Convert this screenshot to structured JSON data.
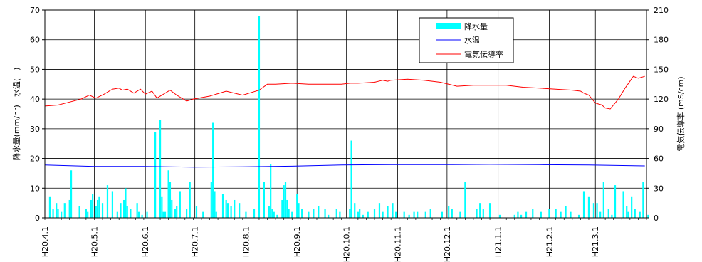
{
  "chart_data": {
    "type": "bar+line",
    "title": "",
    "x_tick_labels": [
      "H20.4.1",
      "H20.5.1",
      "H20.6.1",
      "H20.7.1",
      "H20.8.1",
      "H20.9.1",
      "H20.10.1",
      "H20.11.1",
      "H20.12.1",
      "H21.1.1",
      "H21.2.1",
      "H21.3.1"
    ],
    "y_left": {
      "label": "降水量(mm/hr)　水温(　)",
      "ylim": [
        0,
        70
      ],
      "ticks": [
        0,
        10,
        20,
        30,
        40,
        50,
        60,
        70
      ]
    },
    "y_right": {
      "label": "電気伝導率 (mS/cm)",
      "ylim": [
        0,
        210
      ],
      "ticks": [
        0,
        30,
        60,
        90,
        120,
        150,
        180,
        210
      ]
    },
    "grid": true,
    "legend": {
      "placement": "top-right",
      "entries": [
        "降水量",
        "水温",
        "電気伝導率"
      ]
    },
    "series": [
      {
        "name": "降水量",
        "type": "bar",
        "axis": "left",
        "color": "#00ffff",
        "x": [
          3,
          5,
          7,
          8,
          10,
          12,
          15,
          16,
          21,
          25,
          26,
          28,
          29,
          31,
          32,
          33,
          35,
          38,
          41,
          44,
          46,
          48,
          49,
          50,
          52,
          56,
          57,
          59,
          62,
          67,
          70,
          71,
          72,
          73,
          75,
          76,
          77,
          79,
          80,
          82,
          86,
          88,
          92,
          96,
          101,
          102,
          103,
          104,
          108,
          110,
          111,
          113,
          115,
          118,
          122,
          127,
          130,
          133,
          136,
          137,
          138,
          139,
          141,
          144,
          145,
          146,
          147,
          148,
          150,
          153,
          154,
          156,
          160,
          163,
          166,
          170,
          172,
          177,
          179,
          185,
          186,
          188,
          190,
          191,
          193,
          196,
          200,
          203,
          205,
          208,
          211,
          213,
          218,
          221,
          224,
          226,
          231,
          234,
          241,
          245,
          247,
          252,
          255,
          262,
          264,
          266,
          270,
          276,
          285,
          287,
          289,
          292,
          296,
          301,
          306,
          310,
          313,
          316,
          319,
          324,
          327,
          330,
          333,
          335,
          337,
          339,
          342,
          344,
          346,
          351,
          353,
          354,
          356,
          358,
          361,
          363,
          366
        ],
        "values": [
          7,
          3,
          5,
          3,
          2,
          5,
          6,
          16,
          4,
          3,
          2,
          6,
          8,
          4,
          6,
          7,
          5,
          11,
          9,
          2,
          5,
          6,
          10,
          4,
          3,
          5,
          2,
          1,
          2,
          29,
          33,
          7,
          2,
          2,
          16,
          12,
          6,
          3,
          4,
          9,
          3,
          12,
          4,
          2,
          12,
          32,
          9,
          2,
          8,
          6,
          5,
          4,
          6,
          5,
          2,
          3,
          68,
          12,
          4,
          18,
          3,
          2,
          1,
          6,
          11,
          12,
          6,
          3,
          2,
          8,
          5,
          3,
          2,
          3,
          4,
          3,
          1,
          3,
          2,
          3,
          26,
          5,
          2,
          3,
          1,
          2,
          3,
          5,
          2,
          4,
          5,
          2,
          2,
          1,
          2,
          2,
          2,
          3,
          2,
          4,
          3,
          2,
          12,
          3,
          5,
          3,
          5,
          1,
          1,
          2,
          1,
          2,
          3,
          2,
          3,
          3,
          2,
          4,
          2,
          1,
          9,
          7,
          5,
          5,
          2,
          12,
          3,
          1,
          11,
          9,
          4,
          2,
          7,
          3,
          2,
          12,
          1
        ],
        "x_unit": "days since H20.4.1"
      },
      {
        "name": "水温",
        "type": "line",
        "axis": "left",
        "color": "#0000ff",
        "x": [
          0,
          30,
          60,
          90,
          120,
          150,
          180,
          210,
          240,
          270,
          300,
          330,
          364
        ],
        "values": [
          17.8,
          17.3,
          17.3,
          17.1,
          17.2,
          17.4,
          17.8,
          17.9,
          17.9,
          18.0,
          17.9,
          17.8,
          17.5
        ]
      },
      {
        "name": "電気伝導率",
        "type": "line",
        "axis": "right",
        "color": "#ff0000",
        "x": [
          0,
          8,
          15,
          22,
          27,
          31,
          36,
          41,
          45,
          47,
          50,
          54,
          58,
          61,
          65,
          68,
          72,
          76,
          80,
          86,
          90,
          100,
          110,
          120,
          130,
          135,
          140,
          150,
          160,
          170,
          180,
          185,
          190,
          200,
          205,
          208,
          210,
          220,
          230,
          240,
          250,
          260,
          270,
          280,
          290,
          300,
          310,
          320,
          325,
          327,
          330,
          334,
          336,
          338,
          340,
          343,
          348,
          352,
          355,
          357,
          360,
          364
        ],
        "values": [
          113,
          114,
          117,
          120,
          124,
          121,
          125,
          130,
          131,
          129,
          130,
          126,
          130,
          125,
          128,
          121,
          125,
          129,
          124,
          118,
          120,
          123,
          128,
          124,
          129,
          135,
          135,
          136,
          135,
          135,
          135,
          136,
          136,
          137,
          139,
          138,
          139,
          140,
          139,
          137,
          133,
          134,
          134,
          134,
          132,
          131,
          130,
          129,
          128,
          126,
          124,
          116,
          115,
          114,
          111,
          110,
          120,
          131,
          138,
          143,
          141,
          143
        ]
      }
    ]
  }
}
